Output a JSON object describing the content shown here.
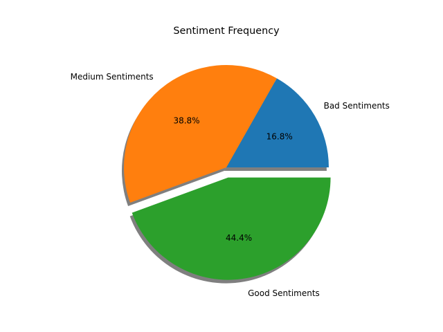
{
  "chart_data": {
    "type": "pie",
    "title": "Sentiment Frequency",
    "categories": [
      "Bad Sentiments",
      "Medium Sentiments",
      "Good Sentiments"
    ],
    "values": [
      16.8,
      38.8,
      44.4
    ],
    "percent_labels": [
      "16.8%",
      "38.8%",
      "44.4%"
    ],
    "colors": [
      "#1f77b4",
      "#ff7f0e",
      "#2ca02c"
    ],
    "exploded": [
      false,
      false,
      true
    ],
    "shadow": true,
    "start_angle_deg": 0,
    "direction": "counterclockwise"
  }
}
